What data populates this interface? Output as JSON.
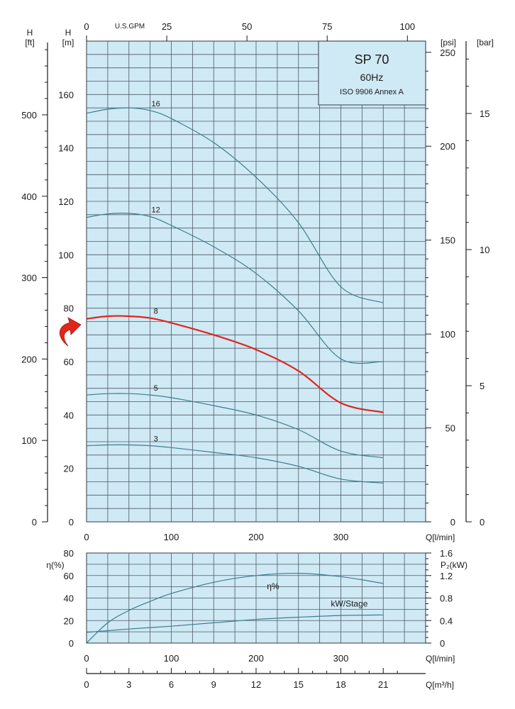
{
  "colors": {
    "grid_bg": "#cfe9f5",
    "grid_line": "#4d5a63",
    "curve": "#3d7e8c",
    "highlight": "#e0261b",
    "axis": "#1a1a1a"
  },
  "legend_box": {
    "model": "SP 70",
    "frequency": "60Hz",
    "standard": "ISO 9906 Annex A"
  },
  "arrow_icon": "curved-arrow-icon",
  "chart_data": [
    {
      "type": "line",
      "xlabel": "Q[l/min]",
      "xlim": [
        0,
        400
      ],
      "ylim": [
        0,
        180
      ],
      "x_ticks": [
        "0",
        "100",
        "200",
        "300"
      ],
      "y_axes": {
        "m": {
          "header": "H",
          "unit": "[m]",
          "ticks": [
            "20",
            "40",
            "60",
            "80",
            "100",
            "120",
            "140",
            "160"
          ]
        },
        "ft": {
          "header": "H",
          "unit": "[ft]",
          "ticks": [
            "0",
            "100",
            "200",
            "300",
            "400",
            "500"
          ]
        },
        "psi": {
          "unit": "[psi]",
          "ticks": [
            "0",
            "50",
            "100",
            "150",
            "200",
            "250"
          ]
        },
        "bar": {
          "unit": "[bar]",
          "ticks": [
            "0",
            "5",
            "10",
            "15"
          ]
        }
      },
      "top_axis": {
        "label": "U.S.GPM",
        "ticks": [
          "0",
          "25",
          "50",
          "75",
          "100"
        ]
      },
      "series": [
        {
          "name": "16",
          "highlight": false,
          "x": [
            0,
            25,
            50,
            75,
            100,
            150,
            200,
            250,
            300,
            350
          ],
          "y": [
            153,
            154.5,
            155,
            154,
            151,
            142,
            129,
            112,
            88,
            82
          ]
        },
        {
          "name": "12",
          "highlight": false,
          "x": [
            0,
            25,
            50,
            75,
            100,
            150,
            200,
            250,
            300,
            350
          ],
          "y": [
            114,
            115.3,
            115.5,
            114.3,
            111,
            103,
            93,
            79,
            61,
            60
          ]
        },
        {
          "name": "8",
          "highlight": true,
          "x": [
            0,
            25,
            50,
            75,
            100,
            150,
            200,
            250,
            300,
            350
          ],
          "y": [
            76,
            77,
            77,
            76.3,
            74.5,
            70,
            64.5,
            56.5,
            44.5,
            41
          ]
        },
        {
          "name": "5",
          "highlight": false,
          "x": [
            0,
            25,
            50,
            75,
            100,
            150,
            200,
            250,
            300,
            350
          ],
          "y": [
            47.5,
            48,
            48,
            47.5,
            46.5,
            43.5,
            40,
            34.5,
            26.5,
            24
          ]
        },
        {
          "name": "3",
          "highlight": false,
          "x": [
            0,
            25,
            50,
            75,
            100,
            150,
            200,
            250,
            300,
            350
          ],
          "y": [
            28.5,
            28.8,
            28.8,
            28.5,
            27.8,
            26,
            24,
            20.8,
            16,
            14.5
          ]
        }
      ]
    },
    {
      "type": "line",
      "xlabel": "Q[l/min]",
      "x2label": "Q[m³/h]",
      "xlim": [
        0,
        400
      ],
      "ylim_left": [
        0,
        80
      ],
      "ylim_right": [
        0,
        1.6
      ],
      "left_label": "η(%)",
      "right_label": "P₂(kW)",
      "x_ticks": [
        "0",
        "100",
        "200",
        "300"
      ],
      "y_left_ticks": [
        "0",
        "20",
        "40",
        "60",
        "80"
      ],
      "y_right_ticks": [
        "0",
        "0.4",
        "0.8",
        "1.2",
        "1.6"
      ],
      "x2_ticks": [
        "0",
        "3",
        "6",
        "9",
        "12",
        "15",
        "18",
        "21"
      ],
      "series": [
        {
          "name": "η%",
          "axis": "left",
          "x": [
            0,
            25,
            50,
            75,
            100,
            150,
            200,
            250,
            300,
            350
          ],
          "y": [
            0,
            18,
            29,
            37,
            44,
            54,
            60,
            62,
            59,
            53
          ]
        },
        {
          "name": "kW/Stage",
          "axis": "right",
          "x": [
            0,
            50,
            100,
            150,
            200,
            250,
            300,
            350
          ],
          "y": [
            0.19,
            0.25,
            0.3,
            0.36,
            0.42,
            0.46,
            0.49,
            0.5
          ]
        }
      ]
    }
  ]
}
